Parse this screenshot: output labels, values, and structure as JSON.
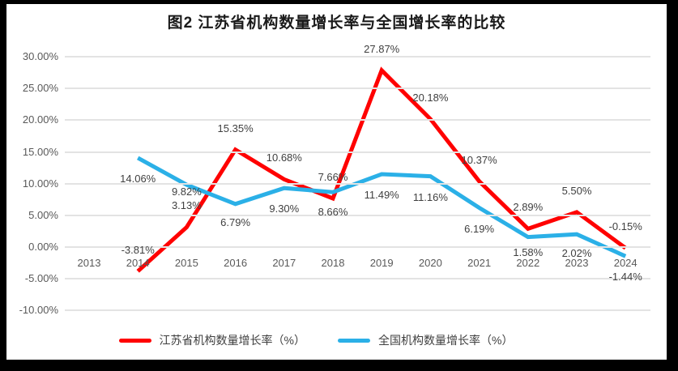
{
  "chart_data": {
    "type": "line",
    "title": "图2  江苏省机构数量增长率与全国增长率的比较",
    "categories": [
      "2013",
      "2014",
      "2015",
      "2016",
      "2017",
      "2018",
      "2019",
      "2020",
      "2021",
      "2022",
      "2023",
      "2024"
    ],
    "y_ticks": [
      "30.00%",
      "25.00%",
      "20.00%",
      "15.00%",
      "10.00%",
      "5.00%",
      "0.00%",
      "-5.00%",
      "-10.00%"
    ],
    "ylim": [
      -10,
      30
    ],
    "y_step": 5,
    "grid": true,
    "legend_position": "bottom",
    "colors": {
      "jiangsu_red": "#FF0000",
      "national_blue": "#2BB0E7",
      "gridline_gray": "#E3E3E3",
      "axis_text_gray": "#595959"
    },
    "series": [
      {
        "name": "江苏省机构数量增长率（%）",
        "color": "#FF0000",
        "first_category": "2014",
        "values": [
          -3.81,
          3.13,
          15.35,
          10.68,
          7.66,
          27.87,
          20.18,
          10.37,
          2.89,
          5.5,
          -0.15
        ],
        "labels": [
          "-3.81%",
          "3.13%",
          "15.35%",
          "10.68%",
          "7.66%",
          "27.87%",
          "20.18%",
          "10.37%",
          "2.89%",
          "5.50%",
          "-0.15%"
        ]
      },
      {
        "name": "全国机构数量增长率（%）",
        "color": "#2BB0E7",
        "first_category": "2014",
        "values": [
          14.06,
          9.82,
          6.79,
          9.3,
          8.66,
          11.49,
          11.16,
          6.19,
          1.58,
          2.02,
          -1.44
        ],
        "labels": [
          "14.06%",
          "9.82%",
          "6.79%",
          "9.30%",
          "8.66%",
          "11.49%",
          "11.16%",
          "6.19%",
          "1.58%",
          "2.02%",
          "-1.44%"
        ]
      }
    ]
  }
}
